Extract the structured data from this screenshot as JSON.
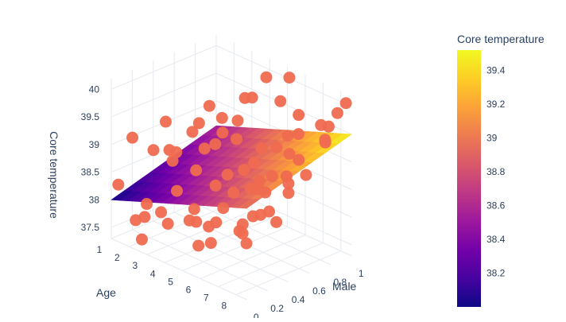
{
  "chart_data": {
    "type": "scatter3d",
    "axes": {
      "x": {
        "title": "Age",
        "ticks": [
          "1",
          "2",
          "3",
          "4",
          "5",
          "6",
          "7",
          "8"
        ],
        "range": [
          1,
          8.6
        ]
      },
      "y": {
        "title": "Male",
        "ticks": [
          "0",
          "0.2",
          "0.4",
          "0.6",
          "0.8",
          "1"
        ],
        "range": [
          0,
          1
        ]
      },
      "z": {
        "title": "Core temperature",
        "ticks": [
          "37.5",
          "38",
          "38.5",
          "39",
          "39.5",
          "40"
        ],
        "range": [
          37.3,
          40.2
        ]
      }
    },
    "grid": true,
    "surface": {
      "description": "fitted regression plane of core temperature over age and sex",
      "corners": [
        {
          "x": 1,
          "y": 0,
          "z": 38.0
        },
        {
          "x": 1,
          "y": 1,
          "z": 38.55
        },
        {
          "x": 8.6,
          "y": 0,
          "z": 38.95
        },
        {
          "x": 8.6,
          "y": 1,
          "z": 39.5
        }
      ]
    },
    "colorbar": {
      "title": "Core temperature",
      "ticks": [
        "38.2",
        "38.4",
        "38.6",
        "38.8",
        "39",
        "39.2",
        "39.4"
      ],
      "range": [
        38.0,
        39.52
      ],
      "placement": "right"
    },
    "points_color": "#ef6a50",
    "points": [
      [
        1.1,
        0.05,
        38.25
      ],
      [
        1.3,
        0.15,
        39.05
      ],
      [
        1.6,
        0.3,
        38.75
      ],
      [
        2.0,
        0.45,
        38.65
      ],
      [
        1.2,
        0.55,
        38.3
      ],
      [
        1.8,
        0.7,
        38.95
      ],
      [
        2.4,
        0.1,
        38.05
      ],
      [
        1.5,
        0.85,
        39.1
      ],
      [
        2.2,
        0.35,
        38.8
      ],
      [
        2.7,
        0.6,
        38.7
      ],
      [
        1.4,
        0.25,
        37.55
      ],
      [
        1.9,
        0.08,
        37.7
      ],
      [
        2.6,
        0.02,
        37.5
      ],
      [
        3.0,
        0.2,
        37.7
      ],
      [
        3.3,
        0.4,
        37.85
      ],
      [
        2.8,
        0.75,
        39.15
      ],
      [
        3.5,
        0.05,
        38.1
      ],
      [
        3.8,
        0.15,
        38.45
      ],
      [
        4.0,
        0.3,
        37.8
      ],
      [
        3.6,
        0.55,
        38.95
      ],
      [
        4.2,
        0.65,
        39.05
      ],
      [
        4.5,
        0.4,
        38.45
      ],
      [
        4.8,
        0.1,
        38.1
      ],
      [
        5.0,
        0.25,
        37.9
      ],
      [
        3.9,
        0.85,
        39.6
      ],
      [
        4.4,
        0.9,
        40.0
      ],
      [
        5.2,
        0.7,
        38.4
      ],
      [
        5.5,
        0.5,
        38.8
      ],
      [
        5.8,
        0.35,
        38.55
      ],
      [
        6.0,
        0.15,
        38.2
      ],
      [
        6.3,
        0.05,
        37.95
      ],
      [
        6.5,
        0.6,
        38.75
      ],
      [
        5.4,
        0.95,
        40.1
      ],
      [
        6.8,
        0.8,
        39.4
      ],
      [
        7.0,
        0.45,
        38.65
      ],
      [
        7.2,
        0.2,
        38.3
      ],
      [
        7.4,
        0.7,
        39.1
      ],
      [
        6.1,
        0.92,
        39.55
      ],
      [
        7.6,
        0.55,
        38.95
      ],
      [
        7.8,
        0.35,
        38.5
      ],
      [
        8.0,
        0.1,
        38.15
      ],
      [
        8.2,
        0.85,
        39.7
      ],
      [
        8.4,
        0.6,
        39.05
      ],
      [
        7.0,
        0.98,
        39.45
      ],
      [
        8.5,
        0.3,
        38.45
      ],
      [
        8.1,
        0.95,
        39.85
      ],
      [
        6.6,
        0.4,
        38.2
      ],
      [
        5.9,
        0.85,
        39.2
      ],
      [
        4.6,
        0.75,
        38.6
      ],
      [
        3.2,
        0.9,
        39.45
      ],
      [
        2.5,
        0.95,
        38.9
      ],
      [
        7.7,
        0.9,
        39.35
      ],
      [
        8.3,
        0.45,
        39.0
      ],
      [
        6.9,
        0.25,
        38.05
      ],
      [
        5.6,
        0.05,
        37.8
      ],
      [
        4.3,
        0.5,
        39.3
      ],
      [
        3.4,
        0.7,
        38.25
      ],
      [
        2.9,
        0.45,
        39.15
      ],
      [
        8.6,
        0.75,
        39.55
      ],
      [
        7.3,
        0.62,
        38.55
      ],
      [
        6.4,
        0.78,
        39.0
      ],
      [
        5.1,
        0.88,
        38.85
      ],
      [
        1.7,
        0.4,
        39.2
      ],
      [
        8.5,
        0.15,
        38.7
      ],
      [
        7.9,
        0.05,
        38.4
      ],
      [
        6.2,
        0.55,
        39.25
      ],
      [
        4.9,
        0.95,
        39.6
      ],
      [
        3.7,
        0.35,
        38.65
      ],
      [
        8.4,
        0.98,
        40.05
      ],
      [
        7.5,
        0.3,
        38.9
      ],
      [
        6.7,
        0.1,
        38.6
      ],
      [
        5.3,
        0.6,
        38.35
      ]
    ]
  }
}
